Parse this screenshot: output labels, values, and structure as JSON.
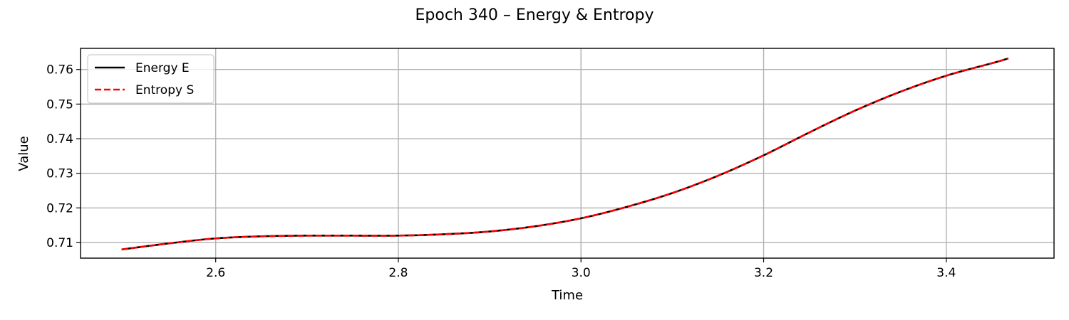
{
  "chart_data": {
    "type": "line",
    "title": "Epoch 340 – Energy & Entropy",
    "xlabel": "Time",
    "ylabel": "Value",
    "xlim": [
      2.452,
      3.518
    ],
    "ylim": [
      0.7055,
      0.7661
    ],
    "xticks": [
      2.6,
      2.8,
      3.0,
      3.2,
      3.4
    ],
    "xtick_labels": [
      "2.6",
      "2.8",
      "3.0",
      "3.2",
      "3.4"
    ],
    "yticks": [
      0.71,
      0.72,
      0.73,
      0.74,
      0.75,
      0.76
    ],
    "ytick_labels": [
      "0.71",
      "0.72",
      "0.73",
      "0.74",
      "0.75",
      "0.76"
    ],
    "grid": true,
    "legend_position": "top-left",
    "x": [
      2.497,
      2.55,
      2.6,
      2.65,
      2.7,
      2.75,
      2.8,
      2.85,
      2.9,
      2.95,
      3.0,
      3.05,
      3.1,
      3.15,
      3.2,
      3.25,
      3.3,
      3.35,
      3.4,
      3.45,
      3.468
    ],
    "series": [
      {
        "name": "Energy E",
        "color": "#000000",
        "linestyle": "solid",
        "values": [
          0.708,
          0.7098,
          0.7112,
          0.7118,
          0.712,
          0.712,
          0.712,
          0.7124,
          0.7132,
          0.7147,
          0.717,
          0.7203,
          0.7243,
          0.7293,
          0.7352,
          0.7418,
          0.7481,
          0.7536,
          0.7582,
          0.7618,
          0.7632
        ]
      },
      {
        "name": "Entropy S",
        "color": "#ff0000",
        "linestyle": "dashed",
        "values": [
          0.708,
          0.7098,
          0.7112,
          0.7118,
          0.712,
          0.712,
          0.712,
          0.7124,
          0.7132,
          0.7147,
          0.717,
          0.7203,
          0.7243,
          0.7293,
          0.7352,
          0.7418,
          0.7481,
          0.7536,
          0.7582,
          0.7618,
          0.7632
        ]
      }
    ]
  }
}
